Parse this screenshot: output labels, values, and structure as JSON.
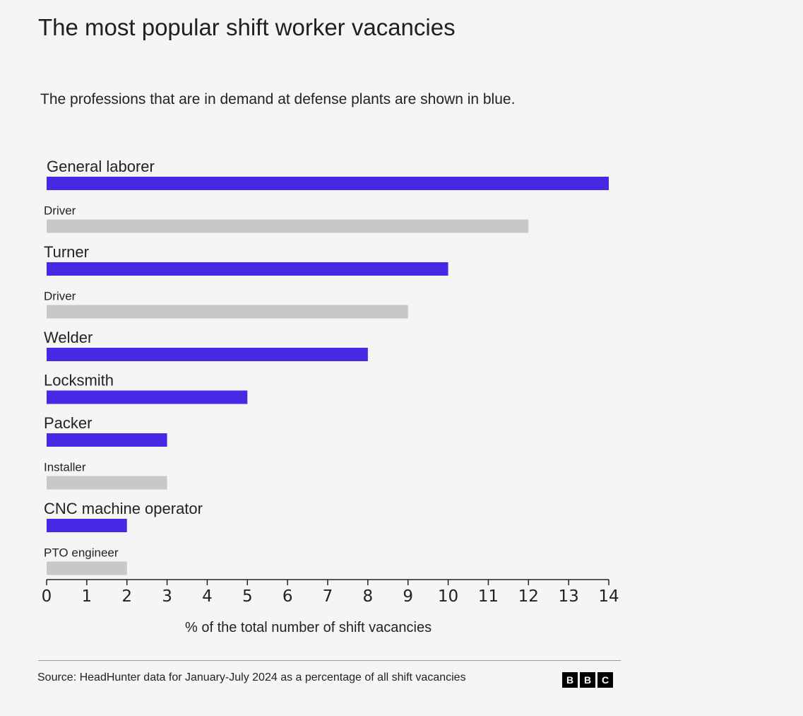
{
  "title": "The most popular shift worker vacancies",
  "subtitle": "The professions that are in demand at defense plants are shown in blue.",
  "source": "Source: HeadHunter data for January-July 2024 as a percentage of all shift vacancies",
  "logo": [
    "B",
    "B",
    "C"
  ],
  "colors": {
    "highlight": "#4628e5",
    "other": "#c8c8c8"
  },
  "chart_data": {
    "type": "bar",
    "orientation": "horizontal",
    "categories": [
      "General laborer",
      "Driver",
      "Turner",
      "Driver",
      "Welder",
      "Locksmith",
      "Packer",
      "Installer",
      "CNC machine operator",
      "PTO engineer"
    ],
    "values": [
      14,
      12,
      10,
      9,
      8,
      5,
      3,
      3,
      2,
      2
    ],
    "highlighted": [
      true,
      false,
      true,
      false,
      true,
      true,
      true,
      false,
      true,
      false
    ],
    "xlabel": "% of the total number of shift vacancies",
    "ylabel": "",
    "xlim": [
      0,
      14
    ],
    "xticks": [
      0,
      1,
      2,
      3,
      4,
      5,
      6,
      7,
      8,
      9,
      10,
      11,
      12,
      13,
      14
    ],
    "grid": false,
    "legend": "none"
  }
}
